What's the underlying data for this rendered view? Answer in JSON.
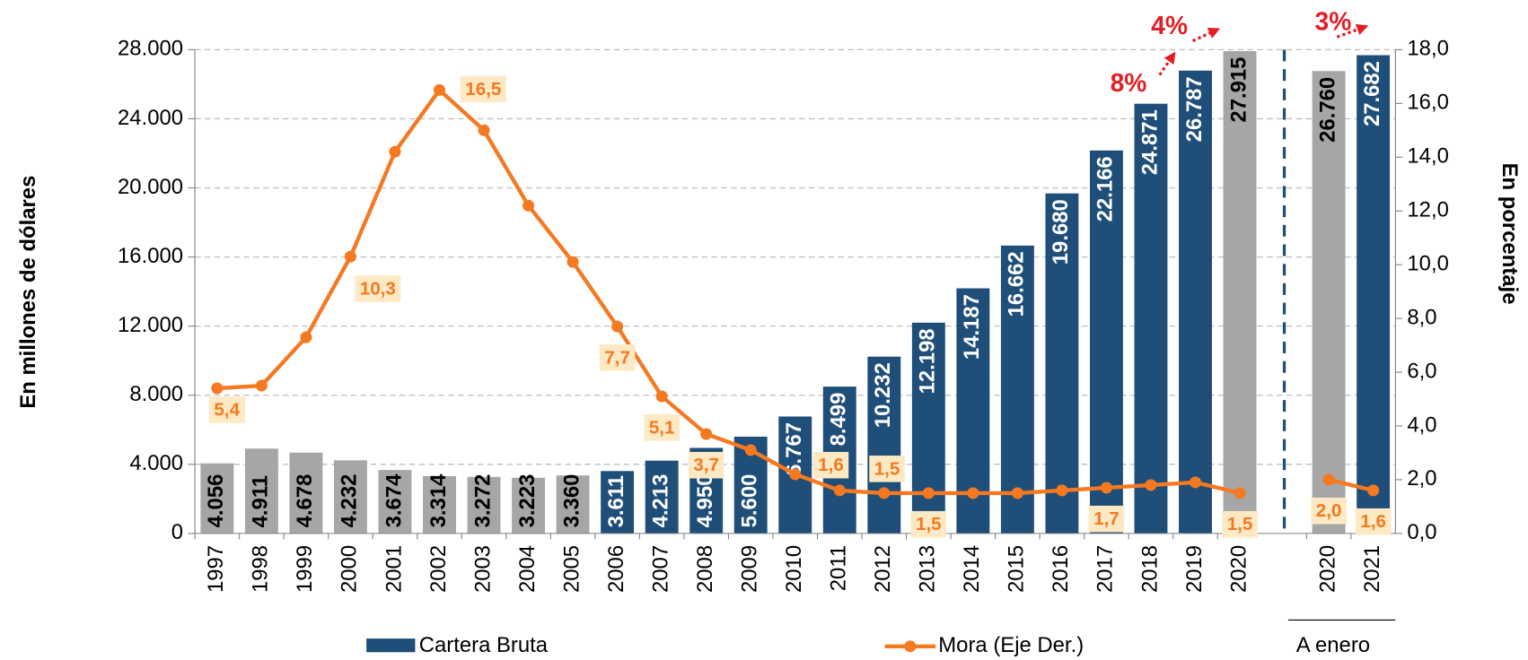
{
  "chart_data": {
    "type": "bar",
    "categories": [
      "1997",
      "1998",
      "1999",
      "2000",
      "2001",
      "2002",
      "2003",
      "2004",
      "2005",
      "2006",
      "2007",
      "2008",
      "2009",
      "2010",
      "2011",
      "2012",
      "2013",
      "2014",
      "2015",
      "2016",
      "2017",
      "2018",
      "2019",
      "2020",
      null,
      "2020",
      "2021"
    ],
    "series": [
      {
        "name": "Cartera Bruta",
        "color": "#1f4e79",
        "colors": [
          "#a6a6a6",
          "#a6a6a6",
          "#a6a6a6",
          "#a6a6a6",
          "#a6a6a6",
          "#a6a6a6",
          "#a6a6a6",
          "#a6a6a6",
          "#a6a6a6",
          "#1f4e79",
          "#1f4e79",
          "#1f4e79",
          "#1f4e79",
          "#1f4e79",
          "#1f4e79",
          "#1f4e79",
          "#1f4e79",
          "#1f4e79",
          "#1f4e79",
          "#1f4e79",
          "#1f4e79",
          "#1f4e79",
          "#1f4e79",
          "#a6a6a6",
          null,
          "#a6a6a6",
          "#1f4e79"
        ],
        "values": [
          4056,
          4911,
          4678,
          4232,
          3674,
          3314,
          3272,
          3223,
          3360,
          3611,
          4213,
          4950,
          5600,
          6767,
          8499,
          10232,
          12198,
          14187,
          16662,
          19680,
          22166,
          24871,
          26787,
          27915,
          null,
          26760,
          27682
        ],
        "value_labels": [
          "4.056",
          "4.911",
          "4.678",
          "4.232",
          "3.674",
          "3.314",
          "3.272",
          "3.223",
          "3.360",
          "3.611",
          "4.213",
          "4.950",
          "5.600",
          "6.767",
          "8.499",
          "10.232",
          "12.198",
          "14.187",
          "16.662",
          "19.680",
          "22.166",
          "24.871",
          "26.787",
          "27.915",
          null,
          "26.760",
          "27.682"
        ]
      },
      {
        "name": "Mora (Eje Der.)",
        "type": "line",
        "axis": "y2",
        "color": "#f47920",
        "values": [
          5.4,
          5.5,
          7.3,
          10.3,
          14.2,
          16.5,
          15.0,
          12.2,
          10.1,
          7.7,
          5.1,
          3.7,
          3.1,
          2.2,
          1.6,
          1.5,
          1.5,
          1.5,
          1.5,
          1.6,
          1.7,
          1.8,
          1.9,
          1.5,
          null,
          2.0,
          1.6
        ],
        "value_labels": [
          "5,4",
          null,
          null,
          "10,3",
          null,
          "16,5",
          null,
          null,
          null,
          "7,7",
          "5,1",
          "3,7",
          null,
          null,
          "1,6",
          "1,5",
          "1,5",
          null,
          null,
          null,
          "1,7",
          null,
          null,
          "1,5",
          null,
          "2,0",
          "1,6"
        ]
      }
    ],
    "ylim": [
      0,
      28000
    ],
    "yticks": [
      0,
      {
        "value": 4000,
        "label": "4.000"
      },
      {
        "value": 8000,
        "label": "8.000"
      },
      {
        "value": 12000,
        "label": "12.000"
      },
      {
        "value": 16000,
        "label": "16.000"
      },
      {
        "value": 20000,
        "label": "20.000"
      },
      {
        "value": 24000,
        "label": "24.000"
      },
      {
        "value": 28000,
        "label": "28.000"
      }
    ],
    "y2lim": [
      0,
      18
    ],
    "y2ticks": [
      {
        "value": 0,
        "label": "0,0"
      },
      {
        "value": 2,
        "label": "2,0"
      },
      {
        "value": 4,
        "label": "4,0"
      },
      {
        "value": 6,
        "label": "6,0"
      },
      {
        "value": 8,
        "label": "8,0"
      },
      {
        "value": 10,
        "label": "10,0"
      },
      {
        "value": 12,
        "label": "12,0"
      },
      {
        "value": 14,
        "label": "14,0"
      },
      {
        "value": 16,
        "label": "16,0"
      },
      {
        "value": 18,
        "label": "18,0"
      }
    ],
    "ylabel": "En millones de dólares",
    "y2label": "En porcentaje",
    "group_label": "A enero",
    "annotations": [
      "8%",
      "4%",
      "3%"
    ],
    "annotation_color": "#e31e24",
    "label_background": "#fde9c3",
    "grid": true,
    "legend": "bottom"
  }
}
